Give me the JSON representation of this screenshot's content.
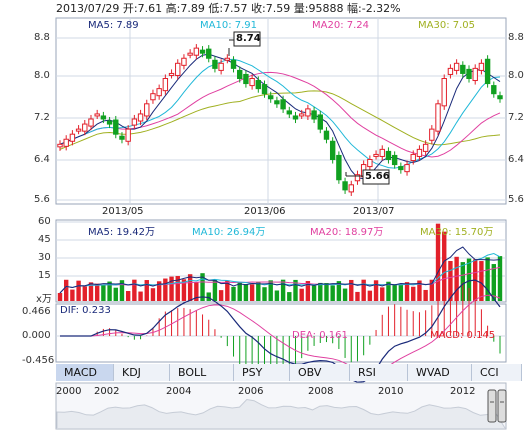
{
  "header": {
    "date": "2013/07/29",
    "open_label": "开:",
    "open": "7.61",
    "high_label": "高:",
    "high": "7.89",
    "low_label": "低:",
    "low": "7.57",
    "close_label": "收:",
    "close": "7.59",
    "volume_label": "量:",
    "volume": "95888",
    "change_label": "幅:",
    "change": "-2.32%"
  },
  "price_legend": {
    "ma5": "MA5: 7.89",
    "ma10": "MA10: 7.91",
    "ma20": "MA20: 7.24",
    "ma30": "MA30: 7.05"
  },
  "price_axis": [
    "8.8",
    "8.0",
    "7.2",
    "6.4",
    "5.6"
  ],
  "price_annotations": {
    "high": "8.74",
    "low": "5.66"
  },
  "date_labels": [
    "2013/05",
    "2013/06",
    "2013/07"
  ],
  "volume_legend": {
    "ma5": "MA5: 19.42万",
    "ma10": "MA10: 26.94万",
    "ma20": "MA20: 18.97万",
    "ma30": "MA30: 15.70万"
  },
  "volume_axis": [
    "60",
    "45",
    "30",
    "15",
    "x万"
  ],
  "macd_legend": {
    "dif": "DIF: 0.233",
    "dea": "DEA: 0.161",
    "macd": "MACD: 0.145"
  },
  "macd_axis": [
    "0.466",
    "0.000",
    "-0.456"
  ],
  "tabs": [
    "MACD",
    "KDJ",
    "BOLL",
    "PSY",
    "OBV",
    "RSI",
    "WVAD",
    "CCI"
  ],
  "active_tab": "MACD",
  "timeline_years": [
    "2000",
    "2002",
    "2004",
    "2006",
    "2008",
    "2010",
    "2012"
  ],
  "colors": {
    "up": "#e2202a",
    "down": "#10a020",
    "ma5": "#1a2a7a",
    "ma10": "#20b8d8",
    "ma20": "#e040a0",
    "ma30": "#a0b020",
    "grid": "#d0d8e4",
    "axis": "#333333"
  },
  "chart_data": {
    "type": "candlestick",
    "ylim": [
      5.6,
      9.0
    ],
    "x_categories": [
      "2013/05",
      "2013/06",
      "2013/07"
    ],
    "price_high": 8.74,
    "price_low": 5.66,
    "volume_ylim": [
      0,
      60
    ],
    "macd_ylim": [
      -0.456,
      0.466
    ]
  }
}
